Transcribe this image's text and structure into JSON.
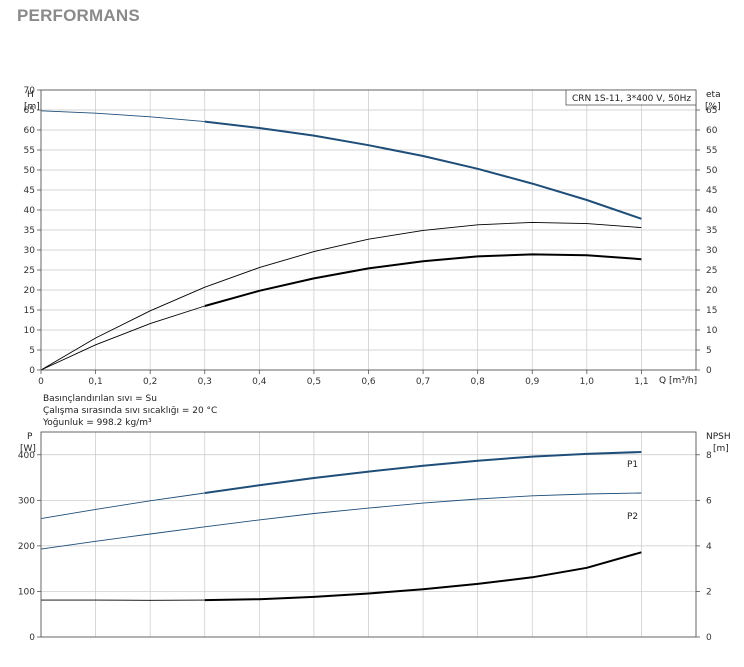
{
  "page": {
    "title": "PERFORMANS"
  },
  "colors": {
    "blue": "#1f4e79",
    "black": "#000000",
    "grid": "#c8c8c8"
  },
  "chart_data": [
    {
      "type": "line",
      "legend_box": "CRN 1S-11, 3*400 V, 50Hz",
      "y_left": {
        "label": "H",
        "unit": "[m]",
        "range": [
          0,
          70
        ],
        "ticks": [
          0,
          5,
          10,
          15,
          20,
          25,
          30,
          35,
          40,
          45,
          50,
          55,
          60,
          65,
          70
        ]
      },
      "y_right": {
        "label": "eta",
        "unit": "[%]",
        "range": [
          0,
          70
        ],
        "ticks": [
          0,
          5,
          10,
          15,
          20,
          25,
          30,
          35,
          40,
          45,
          50,
          55,
          60,
          65
        ]
      },
      "x": {
        "label": "Q [m³/h]",
        "range": [
          0,
          1.2
        ],
        "ticks": [
          0,
          0.1,
          0.2,
          0.3,
          0.4,
          0.5,
          0.6,
          0.7,
          0.8,
          0.9,
          1.0,
          1.1
        ],
        "tick_labels": [
          "0",
          "0,1",
          "0,2",
          "0,3",
          "0,4",
          "0,5",
          "0,6",
          "0,7",
          "0,8",
          "0,9",
          "1,0",
          "1,1"
        ]
      },
      "series": [
        {
          "color": "blue",
          "axis": "left",
          "points": [
            [
              0,
              64.8
            ],
            [
              0.1,
              64.2
            ],
            [
              0.2,
              63.3
            ],
            [
              0.3,
              62.1
            ],
            [
              0.4,
              60.5
            ],
            [
              0.5,
              58.6
            ],
            [
              0.6,
              56.2
            ],
            [
              0.7,
              53.5
            ],
            [
              0.8,
              50.3
            ],
            [
              0.9,
              46.6
            ],
            [
              1.0,
              42.5
            ],
            [
              1.1,
              37.8
            ]
          ],
          "bold_from": 0.3
        },
        {
          "color": "black",
          "axis": "right",
          "points": [
            [
              0,
              0
            ],
            [
              0.1,
              8
            ],
            [
              0.2,
              14.8
            ],
            [
              0.3,
              20.7
            ],
            [
              0.4,
              25.6
            ],
            [
              0.5,
              29.6
            ],
            [
              0.6,
              32.7
            ],
            [
              0.7,
              34.9
            ],
            [
              0.8,
              36.3
            ],
            [
              0.9,
              36.9
            ],
            [
              1.0,
              36.6
            ],
            [
              1.1,
              35.6
            ]
          ],
          "bold_from": null
        },
        {
          "color": "black",
          "axis": "right",
          "points": [
            [
              0,
              0
            ],
            [
              0.1,
              6.3
            ],
            [
              0.2,
              11.6
            ],
            [
              0.3,
              16.0
            ],
            [
              0.4,
              19.8
            ],
            [
              0.5,
              22.9
            ],
            [
              0.6,
              25.4
            ],
            [
              0.7,
              27.2
            ],
            [
              0.8,
              28.4
            ],
            [
              0.9,
              28.9
            ],
            [
              1.0,
              28.7
            ],
            [
              1.1,
              27.7
            ]
          ],
          "bold_from": 0.3
        }
      ],
      "notes": [
        "Basınçlandırılan sıvı = Su",
        "Çalışma sırasında sıvı sıcaklığı = 20 °C",
        "Yoğunluk = 998.2 kg/m³"
      ]
    },
    {
      "type": "line",
      "y_left": {
        "label": "P",
        "unit": "[W]",
        "range": [
          0,
          450
        ],
        "ticks": [
          0,
          100,
          200,
          300,
          400
        ]
      },
      "y_right": {
        "label": "NPSH",
        "unit": "[m]",
        "range": [
          0,
          9
        ],
        "ticks": [
          0,
          2,
          4,
          6,
          8
        ]
      },
      "x": {
        "range": [
          0,
          1.2
        ],
        "ticks": [
          0,
          0.1,
          0.2,
          0.3,
          0.4,
          0.5,
          0.6,
          0.7,
          0.8,
          0.9,
          1.0,
          1.1
        ]
      },
      "series": [
        {
          "name": "P1",
          "color": "blue",
          "axis": "left",
          "points": [
            [
              0,
              260
            ],
            [
              0.1,
              280
            ],
            [
              0.2,
              299
            ],
            [
              0.3,
              316
            ],
            [
              0.4,
              333
            ],
            [
              0.5,
              349
            ],
            [
              0.6,
              363
            ],
            [
              0.7,
              376
            ],
            [
              0.8,
              387
            ],
            [
              0.9,
              396
            ],
            [
              1.0,
              402
            ],
            [
              1.1,
              406
            ]
          ],
          "bold_from": 0.3
        },
        {
          "name": "P2",
          "color": "blue",
          "axis": "left",
          "points": [
            [
              0,
              193
            ],
            [
              0.1,
              210
            ],
            [
              0.2,
              226
            ],
            [
              0.3,
              242
            ],
            [
              0.4,
              257
            ],
            [
              0.5,
              271
            ],
            [
              0.6,
              283
            ],
            [
              0.7,
              294
            ],
            [
              0.8,
              303
            ],
            [
              0.9,
              310
            ],
            [
              1.0,
              314
            ],
            [
              1.1,
              316
            ]
          ],
          "bold_from": null
        },
        {
          "color": "black",
          "axis": "right",
          "points": [
            [
              0,
              1.62
            ],
            [
              0.1,
              1.62
            ],
            [
              0.2,
              1.61
            ],
            [
              0.3,
              1.62
            ],
            [
              0.4,
              1.66
            ],
            [
              0.5,
              1.76
            ],
            [
              0.6,
              1.91
            ],
            [
              0.7,
              2.1
            ],
            [
              0.8,
              2.33
            ],
            [
              0.9,
              2.62
            ],
            [
              1.0,
              3.04
            ],
            [
              1.1,
              3.72
            ]
          ],
          "bold_from": 0.3
        }
      ]
    }
  ]
}
